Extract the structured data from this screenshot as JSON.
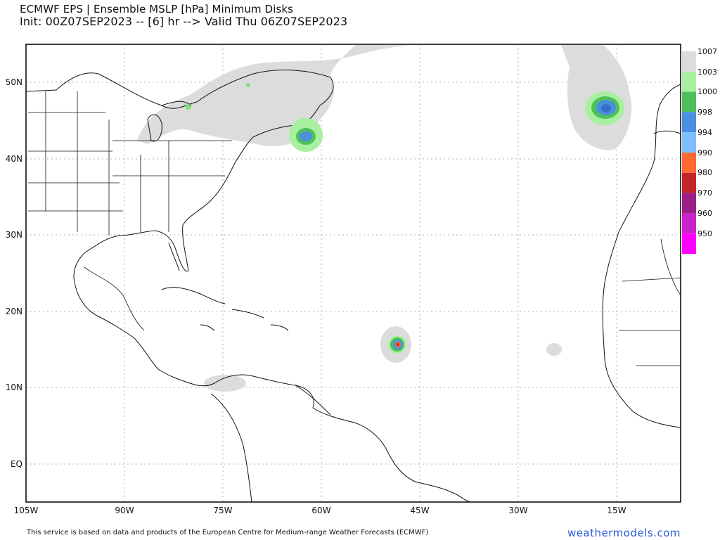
{
  "title": {
    "line1": "ECMWF EPS | Ensemble MSLP [hPa] Minimum Disks",
    "line2": "Init: 00Z07SEP2023 -- [6] hr --> Valid Thu 06Z07SEP2023"
  },
  "axes": {
    "y_labels": [
      "50N",
      "40N",
      "30N",
      "20N",
      "10N",
      "EQ"
    ],
    "x_labels": [
      "105W",
      "90W",
      "75W",
      "60W",
      "45W",
      "30W",
      "15W"
    ]
  },
  "colorbar": {
    "labels": [
      "1007",
      "1003",
      "1000",
      "998",
      "994",
      "990",
      "980",
      "970",
      "960",
      "950"
    ],
    "colors": [
      "#dcdcdc",
      "#a8f0a0",
      "#4fbf5a",
      "#4a8fe0",
      "#7fbfff",
      "#ff6a33",
      "#c0262a",
      "#9b1f86",
      "#cc22cc",
      "#ff00ff"
    ]
  },
  "lows": [
    {
      "name": "nova-scotia-low",
      "lon": -61,
      "lat": 42.5,
      "min_hpa": 998
    },
    {
      "name": "ne-atlantic-low",
      "lon": -15.5,
      "lat": 45.5,
      "min_hpa": 994
    },
    {
      "name": "tropical-low",
      "lon": -45,
      "lat": 15.5,
      "min_hpa": 980
    },
    {
      "name": "cape-verde-low",
      "lon": -24,
      "lat": 15,
      "min_hpa": 1007
    }
  ],
  "footer": "This service is based on data and products of the European Centre for Medium-range Weather Forecasts (ECMWF)",
  "brand": "weathermodels.com"
}
